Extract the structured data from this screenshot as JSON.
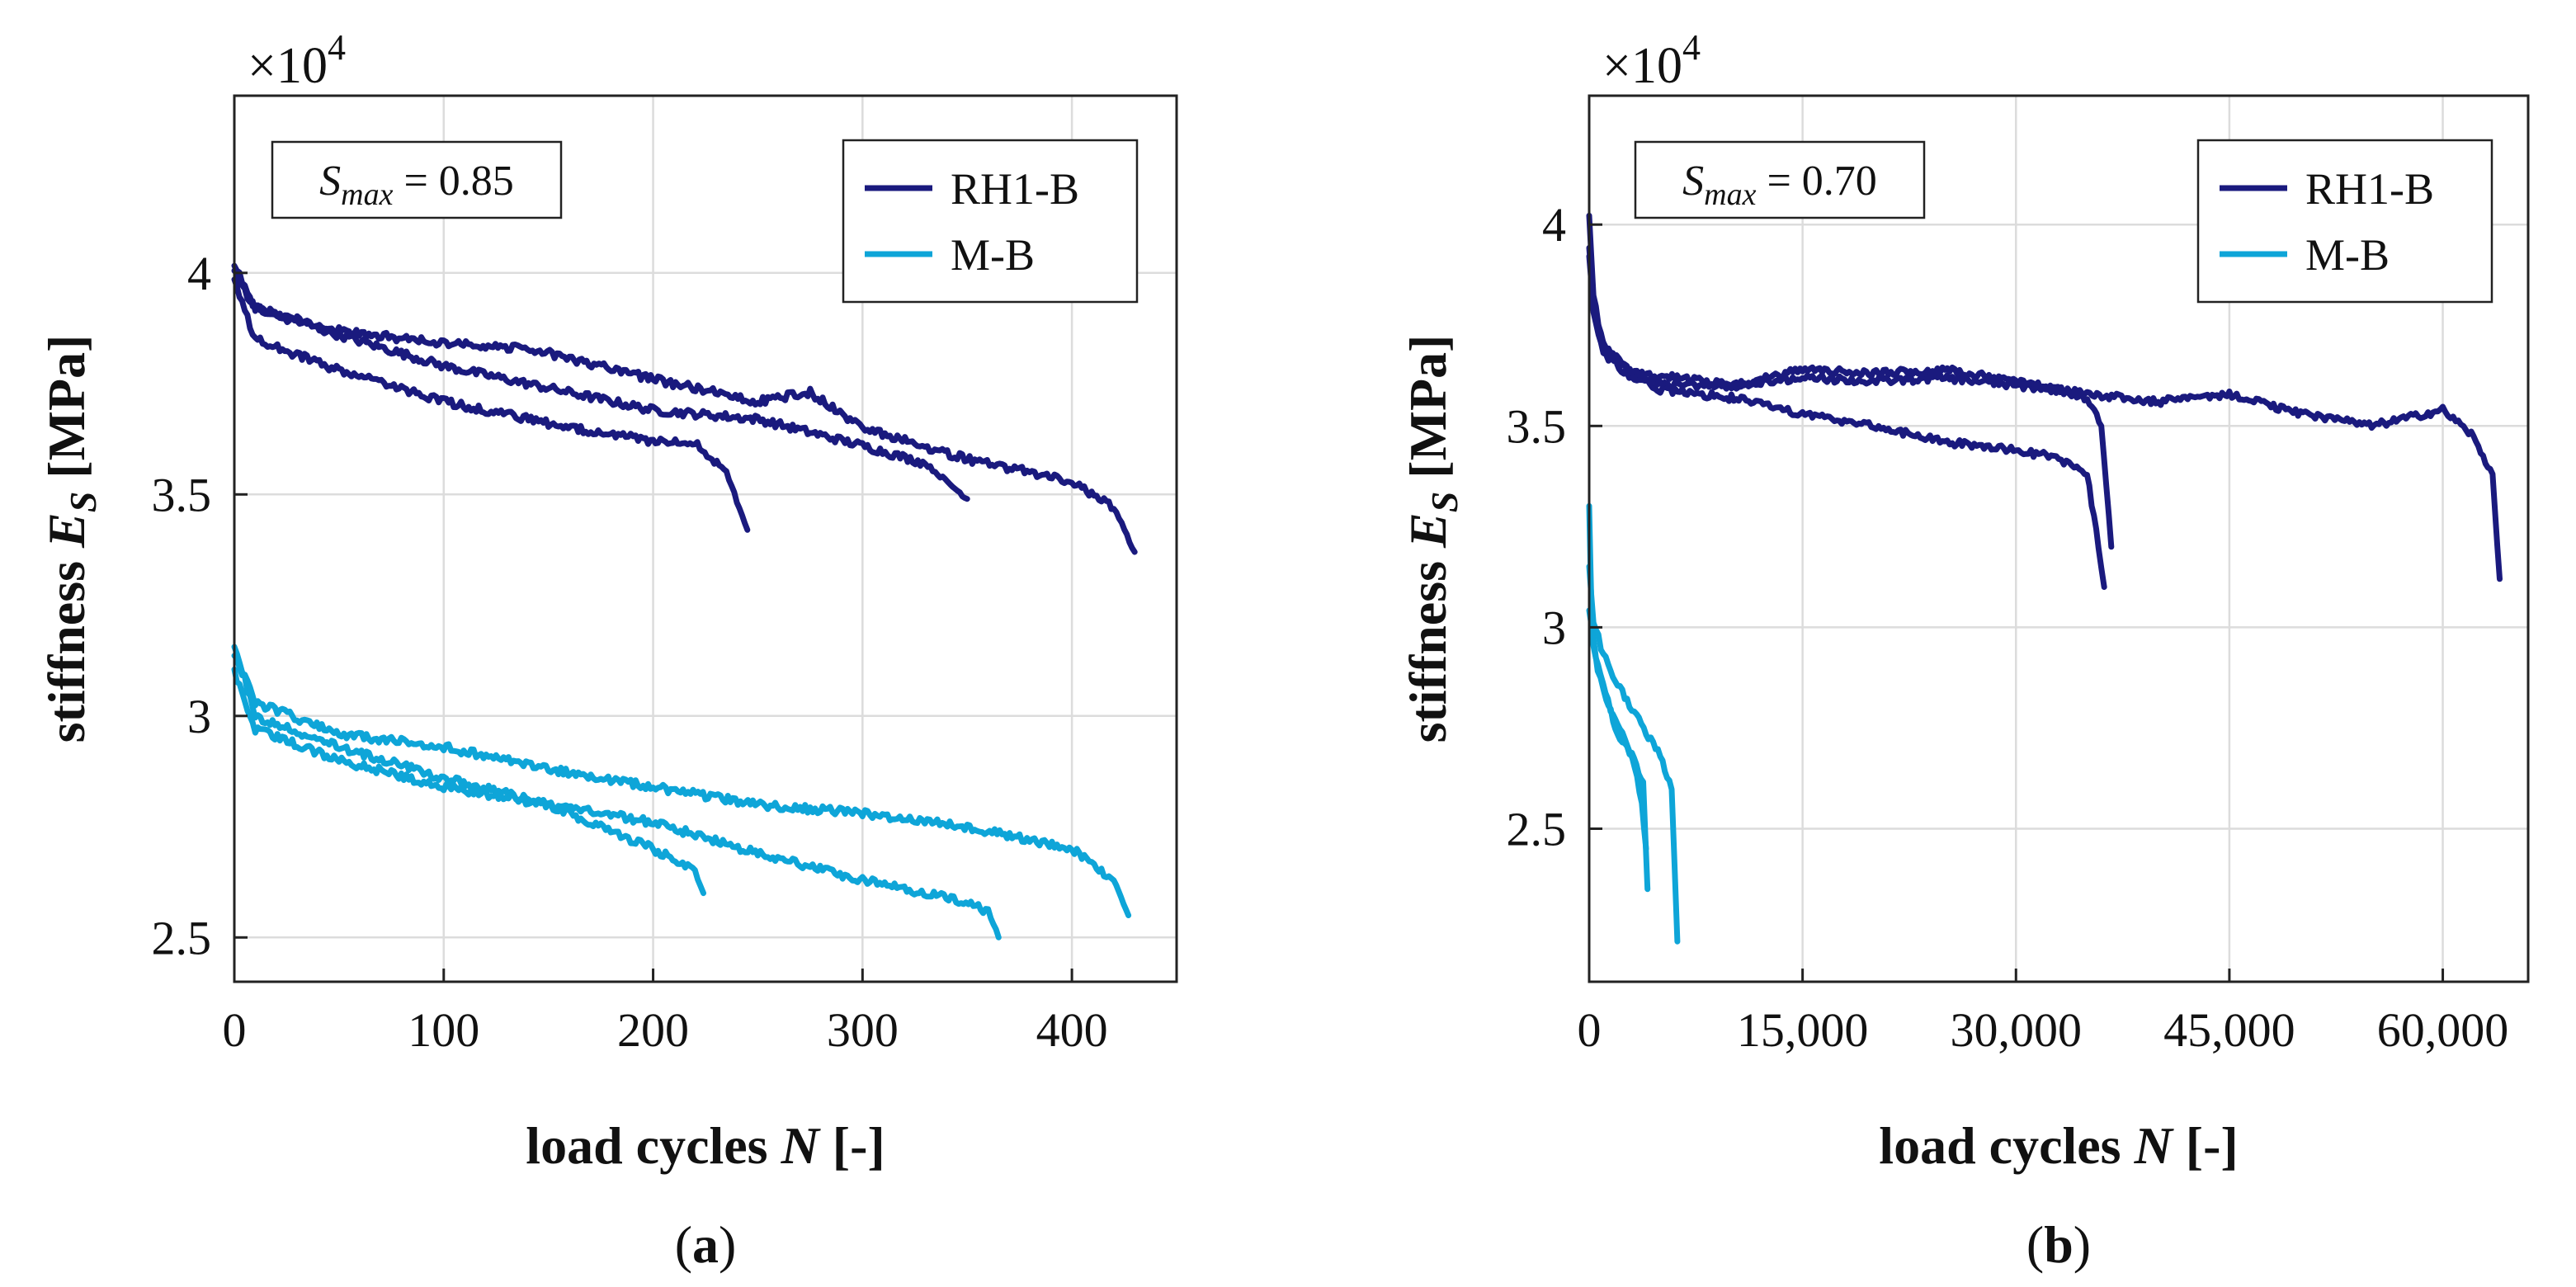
{
  "chart_data": [
    {
      "type": "line",
      "panel_label": "(a)",
      "panel_letter": "a",
      "xlabel_prefix": "load cycles ",
      "xlabel_var": "N",
      "xlabel_suffix": " [-]",
      "ylabel_prefix": "stiffness ",
      "ylabel_var": "E",
      "ylabel_sub": "S",
      "ylabel_suffix": " [MPa]",
      "y_multiplier": "×10",
      "y_multiplier_exp": "4",
      "annotation_var": "S",
      "annotation_sub": "max",
      "annotation_rest": " = 0.85",
      "xlim": [
        0,
        450
      ],
      "ylim": [
        2.4,
        4.4
      ],
      "x_ticks": [
        0,
        100,
        200,
        300,
        400
      ],
      "x_tick_labels": [
        "0",
        "100",
        "200",
        "300",
        "400"
      ],
      "y_ticks": [
        2.5,
        3,
        3.5,
        4
      ],
      "y_tick_labels": [
        "2.5",
        "3",
        "3.5",
        "4"
      ],
      "legend_position": "top-right",
      "colors": {
        "RH1-B": "#1a1a7e",
        "M-B": "#0ea5d8"
      },
      "series": [
        {
          "name": "RH1-B",
          "x": [
            0,
            10,
            50,
            100,
            150,
            200,
            220,
            235,
            245
          ],
          "y": [
            3.98,
            3.85,
            3.78,
            3.71,
            3.66,
            3.62,
            3.62,
            3.55,
            3.42
          ]
        },
        {
          "name": "RH1-B",
          "x": [
            0,
            10,
            50,
            100,
            150,
            200,
            250,
            300,
            330,
            350
          ],
          "y": [
            4.02,
            3.92,
            3.86,
            3.79,
            3.74,
            3.69,
            3.67,
            3.61,
            3.57,
            3.49
          ]
        },
        {
          "name": "RH1-B",
          "x": [
            0,
            10,
            50,
            100,
            140,
            200,
            250,
            275,
            300,
            350,
            400,
            420,
            430
          ],
          "y": [
            4.0,
            3.92,
            3.87,
            3.84,
            3.83,
            3.76,
            3.71,
            3.73,
            3.65,
            3.58,
            3.53,
            3.47,
            3.37
          ]
        },
        {
          "name": "M-B",
          "x": [
            0,
            10,
            50,
            100,
            150,
            200,
            220,
            224
          ],
          "y": [
            3.16,
            3.0,
            2.93,
            2.86,
            2.8,
            2.7,
            2.65,
            2.6
          ]
        },
        {
          "name": "M-B",
          "x": [
            0,
            10,
            50,
            100,
            150,
            200,
            250,
            300,
            340,
            360,
            365
          ],
          "y": [
            3.1,
            2.97,
            2.9,
            2.84,
            2.8,
            2.76,
            2.69,
            2.63,
            2.59,
            2.56,
            2.5
          ]
        },
        {
          "name": "M-B",
          "x": [
            0,
            10,
            50,
            100,
            150,
            200,
            250,
            300,
            350,
            400,
            420,
            427
          ],
          "y": [
            3.14,
            3.03,
            2.96,
            2.93,
            2.88,
            2.84,
            2.8,
            2.78,
            2.75,
            2.7,
            2.63,
            2.55
          ]
        }
      ]
    },
    {
      "type": "line",
      "panel_label": "(b)",
      "panel_letter": "b",
      "xlabel_prefix": "load cycles ",
      "xlabel_var": "N",
      "xlabel_suffix": " [-]",
      "ylabel_prefix": "stiffness ",
      "ylabel_var": "E",
      "ylabel_sub": "S",
      "ylabel_suffix": " [MPa]",
      "y_multiplier": "×10",
      "y_multiplier_exp": "4",
      "annotation_var": "S",
      "annotation_sub": "max",
      "annotation_rest": " = 0.70",
      "xlim": [
        0,
        66000
      ],
      "ylim": [
        2.12,
        4.32
      ],
      "x_ticks": [
        0,
        15000,
        30000,
        45000,
        60000
      ],
      "x_tick_labels": [
        "0",
        "15,000",
        "30,000",
        "45,000",
        "60,000"
      ],
      "y_ticks": [
        2.5,
        3,
        3.5,
        4
      ],
      "y_tick_labels": [
        "2.5",
        "3",
        "3.5",
        "4"
      ],
      "legend_position": "top-right",
      "colors": {
        "RH1-B": "#1a1a7e",
        "M-B": "#0ea5d8"
      },
      "series": [
        {
          "name": "RH1-B",
          "x": [
            0,
            300,
            1000,
            2500,
            5000,
            10000,
            15000,
            20000,
            25000,
            30000,
            33000,
            35000,
            35800,
            36200
          ],
          "y": [
            4.03,
            3.82,
            3.7,
            3.64,
            3.59,
            3.57,
            3.53,
            3.5,
            3.46,
            3.44,
            3.42,
            3.38,
            3.2,
            3.1
          ]
        },
        {
          "name": "RH1-B",
          "x": [
            0,
            300,
            1000,
            3000,
            6000,
            10000,
            15000,
            20000,
            25000,
            30000,
            33000,
            35000,
            36000,
            36700
          ],
          "y": [
            3.92,
            3.78,
            3.68,
            3.62,
            3.6,
            3.6,
            3.62,
            3.61,
            3.62,
            3.6,
            3.59,
            3.57,
            3.5,
            3.2
          ]
        },
        {
          "name": "RH1-B",
          "x": [
            0,
            300,
            1000,
            3000,
            6000,
            10000,
            15000,
            20000,
            25000,
            30000,
            35000,
            40000,
            45000,
            50000,
            55000,
            60000,
            62000,
            63500,
            64000
          ],
          "y": [
            3.95,
            3.8,
            3.7,
            3.63,
            3.62,
            3.6,
            3.64,
            3.63,
            3.64,
            3.61,
            3.58,
            3.56,
            3.58,
            3.53,
            3.5,
            3.54,
            3.48,
            3.38,
            3.12
          ]
        },
        {
          "name": "M-B",
          "x": [
            0,
            200,
            600,
            1200,
            2000,
            3000,
            3800,
            4100
          ],
          "y": [
            3.3,
            3.0,
            2.9,
            2.82,
            2.74,
            2.68,
            2.62,
            2.35
          ]
        },
        {
          "name": "M-B",
          "x": [
            0,
            300,
            800,
            1500,
            2500,
            3200,
            3700,
            4000
          ],
          "y": [
            3.05,
            2.96,
            2.88,
            2.8,
            2.72,
            2.66,
            2.56,
            2.45
          ]
        },
        {
          "name": "M-B",
          "x": [
            0,
            300,
            1000,
            2000,
            3000,
            4000,
            5000,
            5800,
            6200
          ],
          "y": [
            3.15,
            3.02,
            2.93,
            2.86,
            2.8,
            2.74,
            2.68,
            2.6,
            2.22
          ]
        }
      ]
    }
  ]
}
